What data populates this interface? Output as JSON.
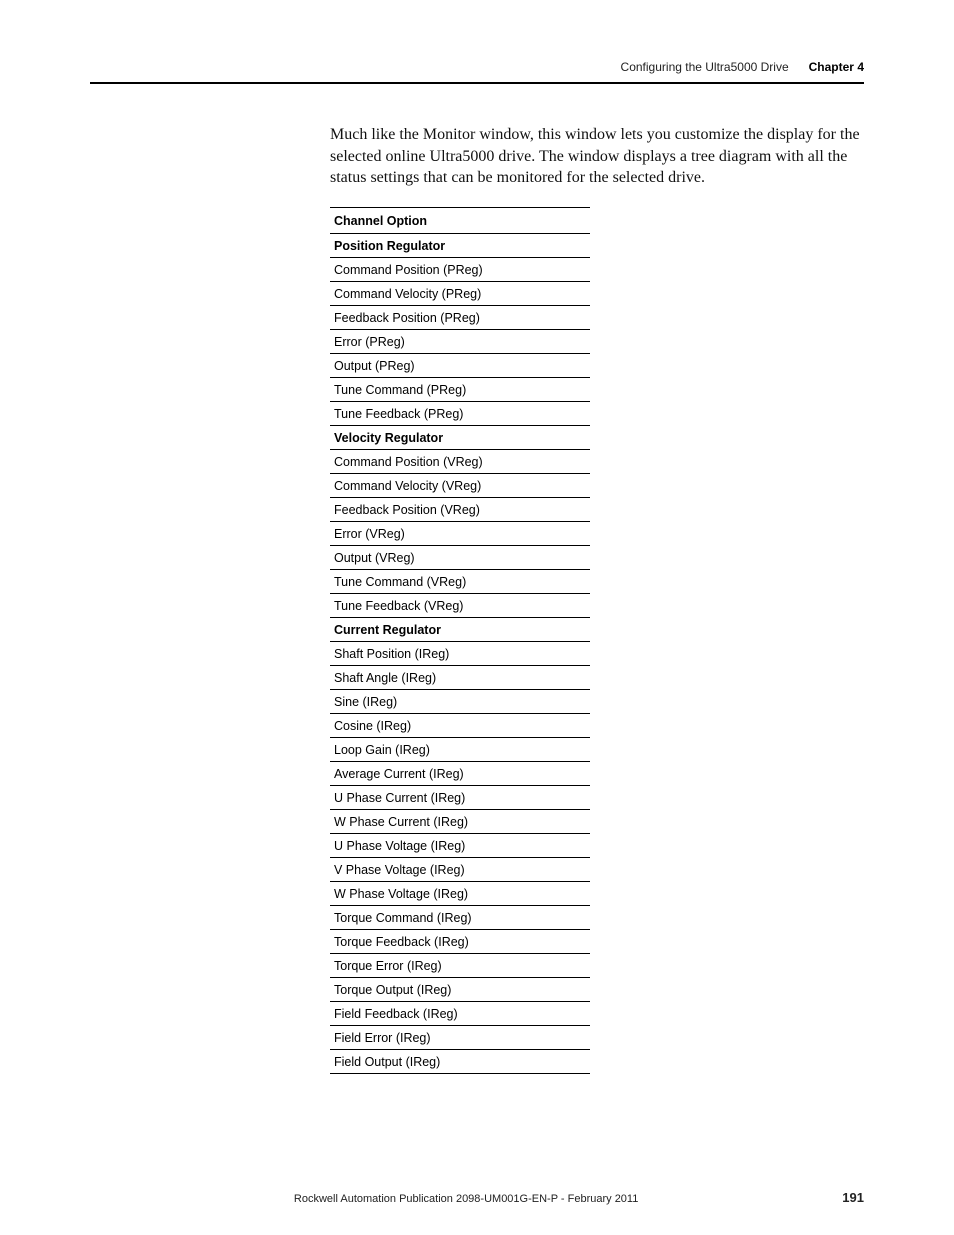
{
  "header": {
    "left": "Configuring the Ultra5000 Drive",
    "right": "Chapter 4"
  },
  "intro": "Much like the Monitor window, this window lets you customize the display for the selected online Ultra5000 drive. The window displays a tree diagram with all the status settings that can be monitored for the selected drive.",
  "table": {
    "header": "Channel Option",
    "rows": [
      {
        "text": "Position Regulator",
        "section": true
      },
      {
        "text": "Command Position (PReg)",
        "section": false
      },
      {
        "text": "Command Velocity (PReg)",
        "section": false
      },
      {
        "text": "Feedback Position (PReg)",
        "section": false
      },
      {
        "text": "Error (PReg)",
        "section": false
      },
      {
        "text": "Output (PReg)",
        "section": false
      },
      {
        "text": "Tune Command (PReg)",
        "section": false
      },
      {
        "text": "Tune Feedback (PReg)",
        "section": false
      },
      {
        "text": "Velocity Regulator",
        "section": true
      },
      {
        "text": "Command Position (VReg)",
        "section": false
      },
      {
        "text": "Command Velocity (VReg)",
        "section": false
      },
      {
        "text": "Feedback Position (VReg)",
        "section": false
      },
      {
        "text": "Error (VReg)",
        "section": false
      },
      {
        "text": "Output (VReg)",
        "section": false
      },
      {
        "text": "Tune Command (VReg)",
        "section": false
      },
      {
        "text": "Tune Feedback (VReg)",
        "section": false
      },
      {
        "text": "Current Regulator",
        "section": true
      },
      {
        "text": "Shaft Position (IReg)",
        "section": false
      },
      {
        "text": "Shaft Angle (IReg)",
        "section": false
      },
      {
        "text": "Sine (IReg)",
        "section": false
      },
      {
        "text": "Cosine (IReg)",
        "section": false
      },
      {
        "text": "Loop Gain (IReg)",
        "section": false
      },
      {
        "text": "Average Current (IReg)",
        "section": false
      },
      {
        "text": "U Phase Current (IReg)",
        "section": false
      },
      {
        "text": "W Phase Current (IReg)",
        "section": false
      },
      {
        "text": "U Phase Voltage (IReg)",
        "section": false
      },
      {
        "text": "V Phase Voltage (IReg)",
        "section": false
      },
      {
        "text": "W Phase Voltage (IReg)",
        "section": false
      },
      {
        "text": "Torque Command (IReg)",
        "section": false
      },
      {
        "text": "Torque Feedback (IReg)",
        "section": false
      },
      {
        "text": "Torque Error (IReg)",
        "section": false
      },
      {
        "text": "Torque Output (IReg)",
        "section": false
      },
      {
        "text": "Field Feedback (IReg)",
        "section": false
      },
      {
        "text": "Field Error (IReg)",
        "section": false
      },
      {
        "text": "Field Output (IReg)",
        "section": false
      }
    ]
  },
  "footer": {
    "publication": "Rockwell Automation Publication 2098-UM001G-EN-P  - February 2011",
    "page": "191"
  }
}
